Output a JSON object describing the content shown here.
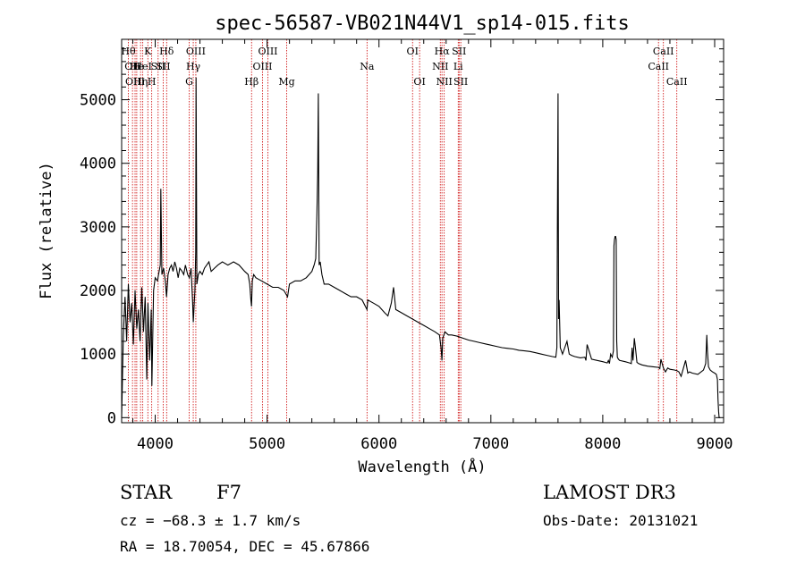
{
  "chart_data": {
    "type": "line",
    "title": "spec-56587-VB021N44V1_sp14-015.fits",
    "xlabel": "Wavelength (Å)",
    "ylabel": "Flux (relative)",
    "xlim": [
      3700,
      9080
    ],
    "ylim": [
      -80,
      5950
    ],
    "xticks": [
      4000,
      5000,
      6000,
      7000,
      8000,
      9000
    ],
    "xtick_labels": [
      "4000",
      "5000",
      "6000",
      "7000",
      "8000",
      "9000"
    ],
    "yticks": [
      0,
      1000,
      2000,
      3000,
      4000,
      5000
    ],
    "ytick_labels": [
      "0",
      "1000",
      "2000",
      "3000",
      "4000",
      "5000"
    ],
    "grid": false,
    "series": [
      {
        "name": "spectrum",
        "x": [
          3700,
          3715,
          3730,
          3745,
          3760,
          3775,
          3790,
          3805,
          3820,
          3835,
          3850,
          3865,
          3880,
          3895,
          3910,
          3925,
          3935,
          3950,
          3965,
          3970,
          3985,
          4000,
          4020,
          4035,
          4045,
          4050,
          4060,
          4075,
          4090,
          4101,
          4115,
          4130,
          4145,
          4160,
          4175,
          4190,
          4205,
          4220,
          4240,
          4255,
          4270,
          4290,
          4305,
          4320,
          4335,
          4340,
          4355,
          4362,
          4365,
          4372,
          4385,
          4400,
          4420,
          4440,
          4460,
          4480,
          4500,
          4530,
          4560,
          4600,
          4650,
          4700,
          4750,
          4800,
          4830,
          4845,
          4855,
          4861,
          4868,
          4880,
          4900,
          4950,
          5000,
          5050,
          5100,
          5150,
          5183,
          5200,
          5250,
          5300,
          5350,
          5400,
          5420,
          5435,
          5445,
          5452,
          5458,
          5465,
          5475,
          5490,
          5510,
          5550,
          5600,
          5650,
          5700,
          5750,
          5800,
          5850,
          5893,
          5900,
          5950,
          6000,
          6050,
          6080,
          6110,
          6130,
          6150,
          6200,
          6250,
          6300,
          6350,
          6400,
          6450,
          6500,
          6540,
          6555,
          6563,
          6570,
          6590,
          6620,
          6650,
          6700,
          6750,
          6800,
          6850,
          6900,
          6950,
          7000,
          7050,
          7100,
          7150,
          7200,
          7250,
          7300,
          7350,
          7400,
          7450,
          7500,
          7550,
          7580,
          7590,
          7595,
          7600,
          7605,
          7610,
          7620,
          7640,
          7660,
          7680,
          7700,
          7720,
          7750,
          7800,
          7840,
          7850,
          7860,
          7900,
          7950,
          8000,
          8040,
          8050,
          8060,
          8070,
          8085,
          8095,
          8100,
          8105,
          8110,
          8115,
          8120,
          8125,
          8130,
          8140,
          8150,
          8200,
          8240,
          8255,
          8262,
          8270,
          8282,
          8295,
          8305,
          8320,
          8350,
          8400,
          8450,
          8498,
          8510,
          8520,
          8542,
          8560,
          8580,
          8600,
          8640,
          8662,
          8680,
          8700,
          8740,
          8760,
          8775,
          8800,
          8850,
          8900,
          8920,
          8930,
          8935,
          8945,
          8960,
          8980,
          9000,
          9015,
          9025,
          9030,
          9035,
          9040,
          9050
        ],
        "y": [
          0,
          1300,
          1900,
          1200,
          2100,
          1500,
          1800,
          1150,
          2000,
          1400,
          1700,
          1200,
          2050,
          1350,
          1900,
          600,
          1800,
          900,
          1700,
          500,
          2000,
          2200,
          2150,
          2300,
          2400,
          3600,
          2250,
          2350,
          2150,
          1900,
          2250,
          2350,
          2400,
          2300,
          2450,
          2350,
          2200,
          2350,
          2300,
          2250,
          2400,
          2250,
          2200,
          2350,
          1800,
          1500,
          2000,
          2600,
          5350,
          2100,
          2250,
          2300,
          2250,
          2350,
          2400,
          2450,
          2300,
          2350,
          2400,
          2450,
          2400,
          2450,
          2400,
          2300,
          2250,
          2100,
          1850,
          1750,
          2150,
          2250,
          2200,
          2150,
          2100,
          2050,
          2050,
          2000,
          1900,
          2100,
          2150,
          2150,
          2200,
          2300,
          2400,
          2500,
          3200,
          3850,
          5100,
          2400,
          2450,
          2250,
          2100,
          2100,
          2050,
          2000,
          1950,
          1900,
          1900,
          1850,
          1700,
          1850,
          1800,
          1750,
          1650,
          1600,
          1800,
          2050,
          1700,
          1650,
          1600,
          1550,
          1500,
          1450,
          1400,
          1350,
          1300,
          1100,
          900,
          1250,
          1350,
          1300,
          1300,
          1280,
          1250,
          1220,
          1200,
          1180,
          1160,
          1140,
          1120,
          1100,
          1090,
          1080,
          1060,
          1050,
          1040,
          1020,
          1000,
          980,
          960,
          950,
          1100,
          3100,
          5100,
          1550,
          1850,
          1100,
          1000,
          1100,
          1200,
          1000,
          980,
          960,
          940,
          950,
          900,
          1150,
          920,
          900,
          880,
          860,
          900,
          850,
          1000,
          950,
          1050,
          2700,
          2800,
          2850,
          2850,
          2800,
          1200,
          950,
          920,
          900,
          880,
          860,
          850,
          1100,
          900,
          1250,
          1050,
          870,
          850,
          830,
          810,
          800,
          790,
          770,
          920,
          780,
          720,
          780,
          760,
          750,
          740,
          720,
          650,
          900,
          700,
          720,
          700,
          680,
          750,
          850,
          1300,
          1050,
          800,
          750,
          720,
          700,
          680,
          600,
          300,
          100,
          0,
          0
        ]
      }
    ],
    "lines": [
      {
        "w": 3760,
        "label": "Hθ",
        "row": 0
      },
      {
        "w": 3797,
        "label": "OII",
        "row": 1
      },
      {
        "w": 3820,
        "label": "OIII",
        "row": 2
      },
      {
        "w": 3835,
        "label": "He",
        "row": 1
      },
      {
        "w": 3869,
        "label": "Hη",
        "row": 2
      },
      {
        "w": 3889,
        "label": "HeI",
        "row": 1
      },
      {
        "w": 3934,
        "label": "K",
        "row": 0
      },
      {
        "w": 3969,
        "label": "H",
        "row": 2
      },
      {
        "w": 4026,
        "label": "SII",
        "row": 1
      },
      {
        "w": 4072,
        "label": "SII",
        "row": 1
      },
      {
        "w": 4102,
        "label": "Hδ",
        "row": 0
      },
      {
        "w": 4304,
        "label": "G",
        "row": 2
      },
      {
        "w": 4340,
        "label": "Hγ",
        "row": 1
      },
      {
        "w": 4363,
        "label": "OIII",
        "row": 0
      },
      {
        "w": 4861,
        "label": "Hβ",
        "row": 2
      },
      {
        "w": 4959,
        "label": "OIII",
        "row": 1
      },
      {
        "w": 5007,
        "label": "OIII",
        "row": 0
      },
      {
        "w": 5175,
        "label": "Mg",
        "row": 2
      },
      {
        "w": 5893,
        "label": "Na",
        "row": 1
      },
      {
        "w": 6300,
        "label": "OI",
        "row": 0
      },
      {
        "w": 6363,
        "label": "OI",
        "row": 2
      },
      {
        "w": 6548,
        "label": "NII",
        "row": 1
      },
      {
        "w": 6563,
        "label": "Hα",
        "row": 0
      },
      {
        "w": 6583,
        "label": "NII",
        "row": 2
      },
      {
        "w": 6708,
        "label": "Li",
        "row": 1
      },
      {
        "w": 6716,
        "label": "SII",
        "row": 0
      },
      {
        "w": 6731,
        "label": "SII",
        "row": 2
      },
      {
        "w": 8498,
        "label": "CaII",
        "row": 1
      },
      {
        "w": 8542,
        "label": "CaII",
        "row": 0
      },
      {
        "w": 8662,
        "label": "CaII",
        "row": 2
      }
    ]
  },
  "footer": {
    "object_class": "STAR",
    "subclass": "F7",
    "cz": "cz = −68.3 ± 1.7 km/s",
    "coords": "RA =  18.70054, DEC =  45.67866",
    "survey": "LAMOST DR3",
    "obs_date": "Obs-Date: 20131021"
  },
  "colors": {
    "spectrum": "#000000",
    "line_markers": "#cc0000",
    "axes": "#000000"
  }
}
